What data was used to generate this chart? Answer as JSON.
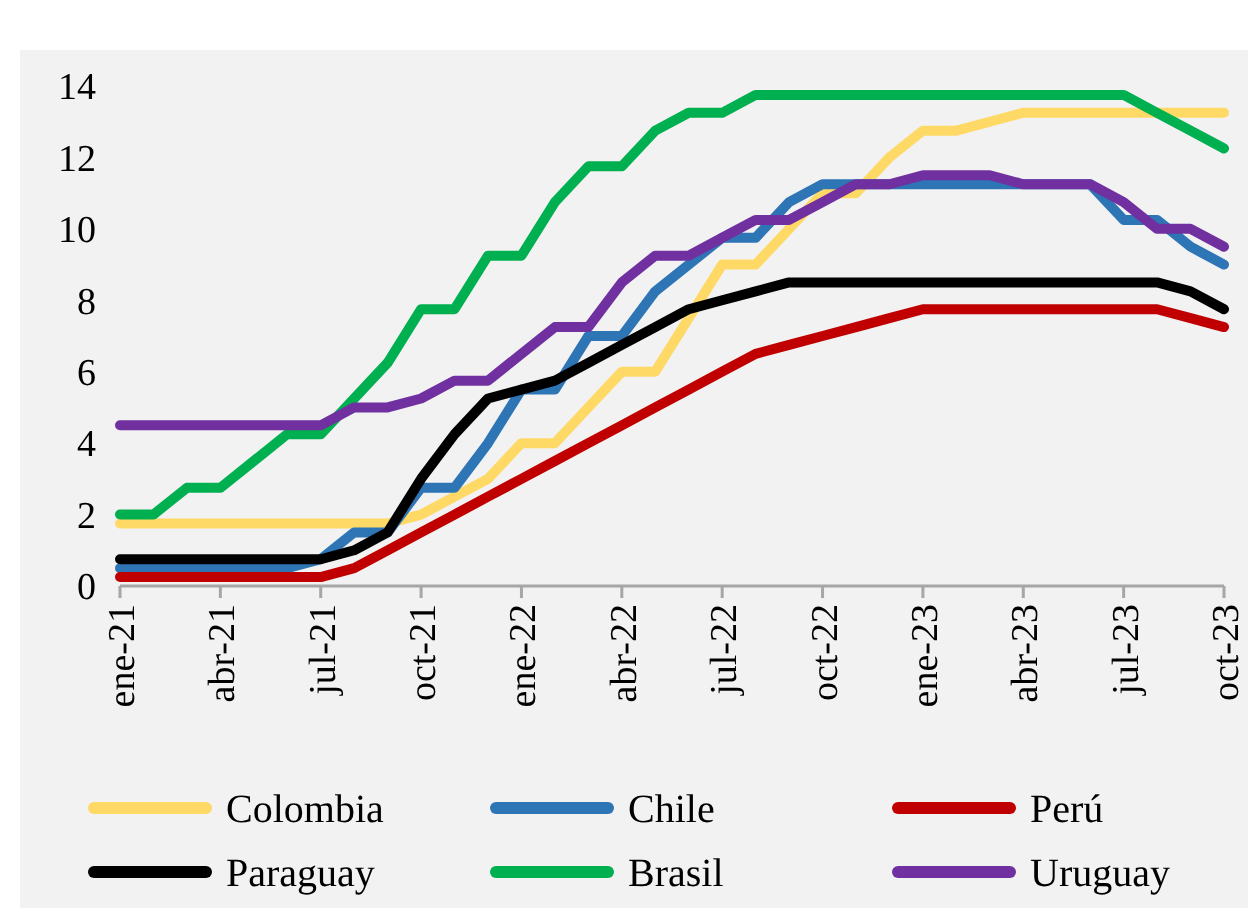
{
  "chart_data": {
    "type": "line",
    "categories": [
      "ene-21",
      null,
      null,
      "abr-21",
      null,
      null,
      "jul-21",
      null,
      null,
      "oct-21",
      null,
      null,
      "ene-22",
      null,
      null,
      "abr-22",
      null,
      null,
      "jul-22",
      null,
      null,
      "oct-22",
      null,
      null,
      "ene-23",
      null,
      null,
      "abr-23",
      null,
      null,
      "jul-23",
      null,
      null,
      "oct-23"
    ],
    "series": [
      {
        "name": "Colombia",
        "color": "#ffd966",
        "values": [
          1.75,
          1.75,
          1.75,
          1.75,
          1.75,
          1.75,
          1.75,
          1.75,
          1.75,
          2.0,
          2.5,
          3.0,
          4.0,
          4.0,
          5.0,
          6.0,
          6.0,
          7.5,
          9.0,
          9.0,
          10.0,
          11.0,
          11.0,
          12.0,
          12.75,
          12.75,
          13.0,
          13.25,
          13.25,
          13.25,
          13.25,
          13.25,
          13.25,
          13.25
        ]
      },
      {
        "name": "Chile",
        "color": "#2e75b6",
        "values": [
          0.5,
          0.5,
          0.5,
          0.5,
          0.5,
          0.5,
          0.75,
          1.5,
          1.5,
          2.75,
          2.75,
          4.0,
          5.5,
          5.5,
          7.0,
          7.0,
          8.25,
          9.0,
          9.75,
          9.75,
          10.75,
          11.25,
          11.25,
          11.25,
          11.25,
          11.25,
          11.25,
          11.25,
          11.25,
          11.25,
          10.25,
          10.25,
          9.5,
          9.0
        ]
      },
      {
        "name": "Perú",
        "color": "#c00000",
        "values": [
          0.25,
          0.25,
          0.25,
          0.25,
          0.25,
          0.25,
          0.25,
          0.5,
          1.0,
          1.5,
          2.0,
          2.5,
          3.0,
          3.5,
          4.0,
          4.5,
          5.0,
          5.5,
          6.0,
          6.5,
          6.75,
          7.0,
          7.25,
          7.5,
          7.75,
          7.75,
          7.75,
          7.75,
          7.75,
          7.75,
          7.75,
          7.75,
          7.5,
          7.25
        ]
      },
      {
        "name": "Paraguay",
        "color": "#000000",
        "values": [
          0.75,
          0.75,
          0.75,
          0.75,
          0.75,
          0.75,
          0.75,
          1.0,
          1.5,
          3.0,
          4.25,
          5.25,
          5.5,
          5.75,
          6.25,
          6.75,
          7.25,
          7.75,
          8.0,
          8.25,
          8.5,
          8.5,
          8.5,
          8.5,
          8.5,
          8.5,
          8.5,
          8.5,
          8.5,
          8.5,
          8.5,
          8.5,
          8.25,
          7.75
        ]
      },
      {
        "name": "Brasil",
        "color": "#00b050",
        "values": [
          2.0,
          2.0,
          2.75,
          2.75,
          3.5,
          4.25,
          4.25,
          5.25,
          6.25,
          7.75,
          7.75,
          9.25,
          9.25,
          10.75,
          11.75,
          11.75,
          12.75,
          13.25,
          13.25,
          13.75,
          13.75,
          13.75,
          13.75,
          13.75,
          13.75,
          13.75,
          13.75,
          13.75,
          13.75,
          13.75,
          13.75,
          13.25,
          12.75,
          12.25
        ]
      },
      {
        "name": "Uruguay",
        "color": "#7030a0",
        "values": [
          4.5,
          4.5,
          4.5,
          4.5,
          4.5,
          4.5,
          4.5,
          5.0,
          5.0,
          5.25,
          5.75,
          5.75,
          6.5,
          7.25,
          7.25,
          8.5,
          9.25,
          9.25,
          9.75,
          10.25,
          10.25,
          10.75,
          11.25,
          11.25,
          11.5,
          11.5,
          11.5,
          11.25,
          11.25,
          11.25,
          10.75,
          10.0,
          10.0,
          9.5
        ]
      }
    ],
    "ylim": [
      0,
      14
    ],
    "yticks": [
      0,
      2,
      4,
      6,
      8,
      10,
      12,
      14
    ],
    "grid": false,
    "legend": "bottom",
    "marker": "none",
    "line_style": "solid"
  }
}
